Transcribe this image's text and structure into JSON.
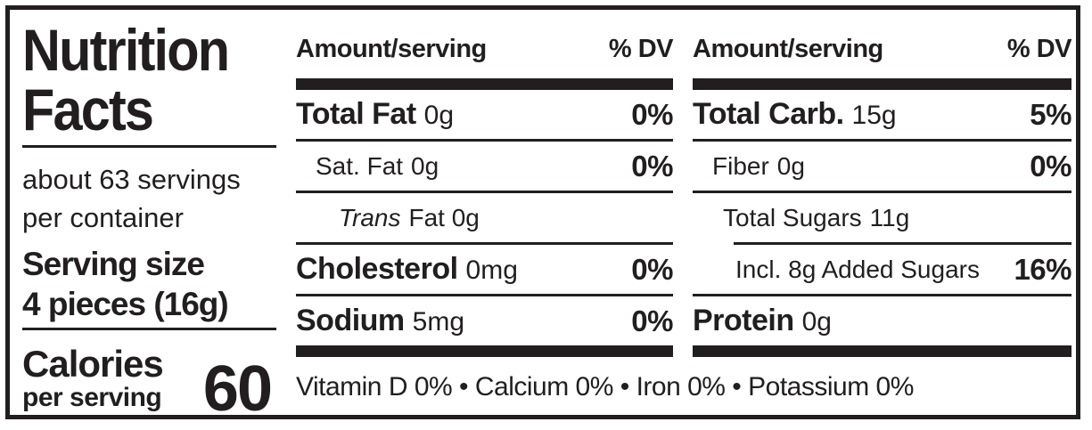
{
  "label": {
    "title_line1": "Nutrition",
    "title_line2": "Facts",
    "servings_line1": "about 63 servings",
    "servings_line2": "per container",
    "serving_size_label": "Serving size",
    "serving_size_value": "4 pieces (16g)",
    "calories_label": "Calories",
    "calories_sub": "per serving",
    "calories_value": "60"
  },
  "columns": [
    {
      "header_left": "Amount/serving",
      "header_right": "% DV",
      "rows": [
        {
          "name": "Total Fat",
          "amount": "0g",
          "dv": "0%"
        },
        {
          "name": "Sat. Fat",
          "amount": "0g",
          "dv": "0%"
        },
        {
          "name": "Trans",
          "amount": "Fat 0g",
          "dv": ""
        },
        {
          "name": "Cholesterol",
          "amount": "0mg",
          "dv": "0%"
        },
        {
          "name": "Sodium",
          "amount": "5mg",
          "dv": "0%"
        }
      ]
    },
    {
      "header_left": "Amount/serving",
      "header_right": "% DV",
      "rows": [
        {
          "name": "Total Carb.",
          "amount": "15g",
          "dv": "5%"
        },
        {
          "name": "Fiber",
          "amount": "0g",
          "dv": "0%"
        },
        {
          "name": "Total Sugars",
          "amount": "11g",
          "dv": ""
        },
        {
          "name": "Incl. 8g Added Sugars",
          "amount": "",
          "dv": "16%"
        },
        {
          "name": "Protein",
          "amount": "0g",
          "dv": ""
        }
      ]
    }
  ],
  "footer": {
    "text": "Vitamin D 0% • Calcium 0% • Iron 0% • Potassium 0%"
  },
  "colors": {
    "ink": "#221e1f",
    "background": "#ffffff"
  }
}
